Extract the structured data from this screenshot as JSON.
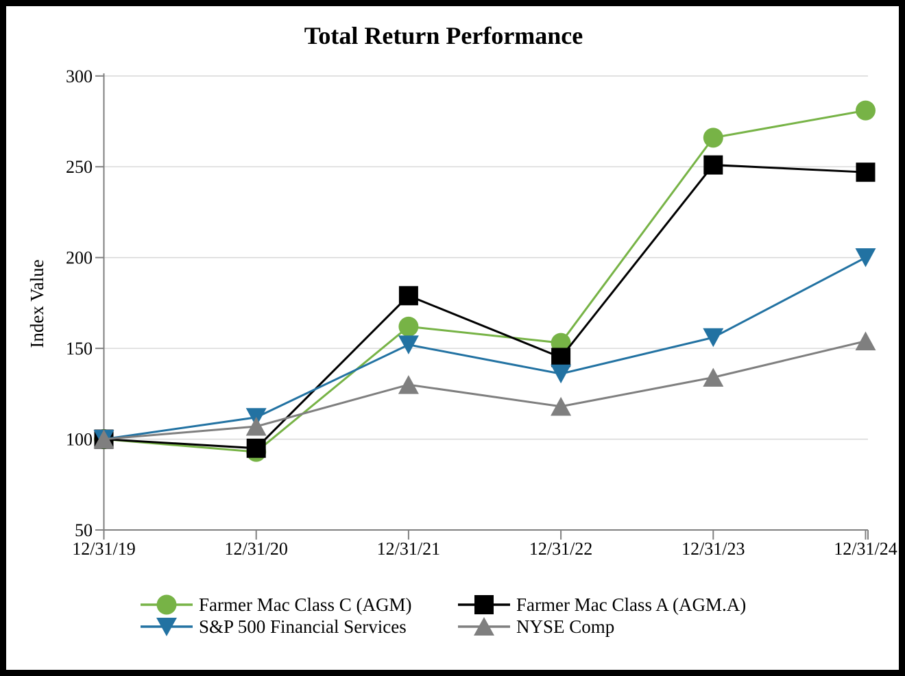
{
  "chart_data": {
    "type": "line",
    "title": "Total Return Performance",
    "xlabel": "",
    "ylabel": "Index Value",
    "categories": [
      "12/31/19",
      "12/31/20",
      "12/31/21",
      "12/31/22",
      "12/31/23",
      "12/31/24"
    ],
    "ylim": [
      50,
      300
    ],
    "yticks": [
      50,
      100,
      150,
      200,
      250,
      300
    ],
    "grid": true,
    "legend_position": "bottom",
    "axis_color": "#808080",
    "grid_color": "#DADADA",
    "series": [
      {
        "name": "Farmer Mac Class C (AGM)",
        "marker": "circle",
        "color": "#77B346",
        "values": [
          100,
          93,
          162,
          153,
          266,
          281
        ]
      },
      {
        "name": "Farmer Mac Class A (AGM.A)",
        "marker": "square",
        "color": "#000000",
        "values": [
          100,
          95,
          179,
          145,
          251,
          247
        ]
      },
      {
        "name": "S&P 500 Financial Services",
        "marker": "triangle-down",
        "color": "#2272A2",
        "values": [
          100,
          112,
          152,
          136,
          156,
          200
        ]
      },
      {
        "name": "NYSE Comp",
        "marker": "triangle-up",
        "color": "#7F7F7F",
        "values": [
          100,
          107,
          130,
          118,
          134,
          154
        ]
      }
    ]
  }
}
